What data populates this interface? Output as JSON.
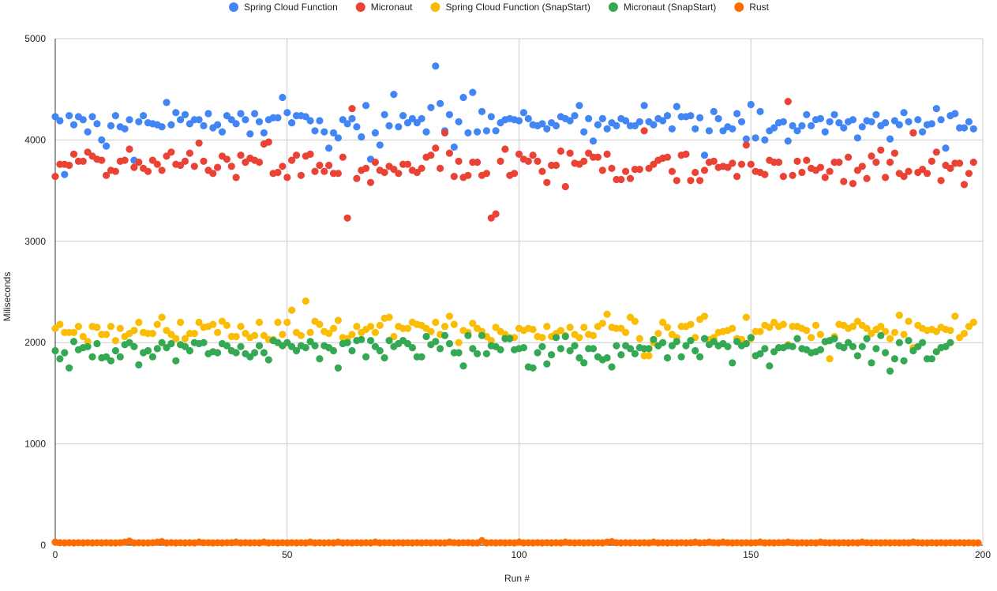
{
  "chart_data": {
    "type": "scatter",
    "title": "",
    "xlabel": "Run #",
    "ylabel": "Miliseconds",
    "xlim": [
      0,
      200
    ],
    "ylim": [
      0,
      5000
    ],
    "x_ticks": [
      "0",
      "50",
      "100",
      "150",
      "200"
    ],
    "y_ticks": [
      "0",
      "1000",
      "2000",
      "3000",
      "4000",
      "5000"
    ],
    "grid": true,
    "legend_position": "top",
    "series": [
      {
        "name": "Spring Cloud Function",
        "color": "#4285f4",
        "values": [
          4230,
          4190,
          3660,
          4240,
          4150,
          4230,
          4200,
          4080,
          4230,
          4160,
          4000,
          3940,
          4140,
          4240,
          4130,
          4110,
          4200,
          3800,
          4180,
          4240,
          4170,
          4160,
          4150,
          4130,
          4370,
          4150,
          4270,
          4200,
          4250,
          4160,
          4200,
          4200,
          4140,
          4260,
          4120,
          4150,
          4080,
          4240,
          4200,
          4160,
          4260,
          4200,
          4060,
          4260,
          4180,
          4070,
          4200,
          4220,
          4220,
          4420,
          4270,
          4170,
          4240,
          4240,
          4230,
          4190,
          4090,
          4190,
          4080,
          3920,
          4070,
          4020,
          4200,
          4160,
          4210,
          4130,
          4030,
          4340,
          3810,
          4070,
          3950,
          4250,
          4140,
          4450,
          4130,
          4240,
          4170,
          4210,
          4170,
          4210,
          4080,
          4320,
          4730,
          4360,
          4090,
          4250,
          3930,
          4180,
          4420,
          4070,
          4470,
          4080,
          4280,
          4090,
          4230,
          4090,
          4170,
          4200,
          4210,
          4200,
          4190,
          4270,
          4210,
          4150,
          4140,
          4160,
          4110,
          4170,
          4140,
          4230,
          4210,
          4190,
          4240,
          4340,
          4080,
          4210,
          3990,
          4150,
          4210,
          4110,
          4170,
          4140,
          4210,
          4190,
          4140,
          4140,
          4180,
          4340,
          4180,
          4150,
          4210,
          4190,
          4240,
          4110,
          4330,
          4230,
          4230,
          4240,
          4110,
          4220,
          3850,
          4090,
          4280,
          4210,
          4090,
          4130,
          4110,
          4260,
          4180,
          4010,
          4350,
          4020,
          4280,
          4000,
          4090,
          4120,
          4170,
          4180,
          3990,
          4140,
          4090,
          4140,
          4250,
          4140,
          4200,
          4210,
          4080,
          4180,
          4250,
          4170,
          4120,
          4180,
          4200,
          4020,
          4130,
          4190,
          4180,
          4250,
          4140,
          4170,
          4010,
          4190,
          4150,
          4270,
          4180,
          4070,
          4200,
          4080,
          4150,
          4160,
          4310,
          4200,
          3920,
          4240,
          4260,
          4120,
          4120,
          4180,
          4110
        ]
      },
      {
        "name": "Micronaut",
        "color": "#ea4335",
        "values": [
          3640,
          3760,
          3760,
          3750,
          3860,
          3790,
          3790,
          3880,
          3840,
          3810,
          3800,
          3650,
          3700,
          3690,
          3790,
          3800,
          3910,
          3730,
          3780,
          3720,
          3690,
          3800,
          3760,
          3700,
          3840,
          3880,
          3760,
          3750,
          3790,
          3870,
          3740,
          3970,
          3790,
          3700,
          3670,
          3730,
          3840,
          3810,
          3740,
          3630,
          3850,
          3780,
          3820,
          3800,
          3780,
          3960,
          3980,
          3670,
          3680,
          3740,
          3630,
          3800,
          3850,
          3650,
          3840,
          3860,
          3690,
          3750,
          3690,
          3750,
          3670,
          3670,
          3830,
          3230,
          4310,
          3620,
          3700,
          3720,
          3580,
          3780,
          3700,
          3680,
          3740,
          3710,
          3670,
          3760,
          3760,
          3700,
          3680,
          3720,
          3830,
          3850,
          3920,
          3720,
          4070,
          3870,
          3640,
          3790,
          3630,
          3650,
          3780,
          3780,
          3650,
          3670,
          3230,
          3270,
          3790,
          3910,
          3650,
          3670,
          3860,
          3810,
          3790,
          3850,
          3790,
          3690,
          3580,
          3750,
          3750,
          3890,
          3540,
          3870,
          3770,
          3760,
          3790,
          3870,
          3830,
          3830,
          3700,
          3860,
          3720,
          3610,
          3610,
          3690,
          3620,
          3710,
          3710,
          4090,
          3720,
          3760,
          3800,
          3820,
          3830,
          3690,
          3600,
          3850,
          3860,
          3600,
          3680,
          3600,
          3700,
          3780,
          3790,
          3730,
          3740,
          3730,
          3770,
          3640,
          3760,
          3950,
          3760,
          3690,
          3680,
          3660,
          3800,
          3780,
          3780,
          3640,
          4380,
          3650,
          3790,
          3680,
          3800,
          3720,
          3700,
          3730,
          3630,
          3690,
          3780,
          3780,
          3590,
          3830,
          3570,
          3700,
          3740,
          3620,
          3840,
          3780,
          3900,
          3630,
          3780,
          3870,
          3670,
          3640,
          3690,
          4070,
          3680,
          3710,
          3670,
          3790,
          3880,
          3600,
          3750,
          3720,
          3770,
          3770,
          3560,
          3670,
          3780
        ]
      },
      {
        "name": "Spring Cloud Function (SnapStart)",
        "color": "#fbbc04",
        "values": [
          2140,
          2180,
          2100,
          2100,
          2100,
          2160,
          2060,
          2010,
          2160,
          2150,
          2080,
          2080,
          2160,
          2020,
          2140,
          2060,
          2090,
          2120,
          2200,
          2100,
          2090,
          2090,
          2180,
          2250,
          2120,
          2080,
          2040,
          2200,
          2040,
          2090,
          2090,
          2200,
          2150,
          2160,
          2180,
          2100,
          2210,
          2170,
          2060,
          2060,
          2160,
          2090,
          2050,
          2070,
          2200,
          2070,
          2030,
          2030,
          2200,
          2080,
          2200,
          2320,
          2100,
          2070,
          2410,
          2100,
          2210,
          2180,
          2110,
          2090,
          2140,
          2220,
          2050,
          2040,
          2080,
          2160,
          2100,
          2130,
          2160,
          2100,
          2170,
          2240,
          2250,
          2060,
          2160,
          2140,
          2140,
          2200,
          2180,
          2170,
          2140,
          2110,
          2200,
          2080,
          2160,
          2260,
          2180,
          2000,
          2120,
          2100,
          2190,
          2140,
          2110,
          2060,
          2020,
          2150,
          2110,
          2080,
          2050,
          2050,
          2140,
          2120,
          2140,
          2130,
          2060,
          2050,
          2160,
          2060,
          2090,
          2120,
          2070,
          2150,
          2080,
          2050,
          2150,
          2080,
          2070,
          2160,
          2190,
          2280,
          2150,
          2140,
          2140,
          2100,
          2250,
          2210,
          2040,
          1870,
          1870,
          2000,
          2090,
          2200,
          2150,
          2080,
          2050,
          2160,
          2160,
          2180,
          2050,
          2230,
          2260,
          2030,
          2050,
          2100,
          2110,
          2120,
          2140,
          2040,
          2030,
          2250,
          2040,
          2110,
          2110,
          2170,
          2150,
          2200,
          2160,
          2180,
          1980,
          2160,
          2160,
          2140,
          2120,
          2050,
          2170,
          2080,
          2010,
          1840,
          2060,
          2180,
          2170,
          2140,
          2160,
          2210,
          2170,
          2140,
          2090,
          2130,
          2160,
          2110,
          2040,
          2100,
          2270,
          2080,
          2210,
          1950,
          2170,
          2140,
          2120,
          2130,
          2110,
          2150,
          2130,
          2120,
          2260,
          2050,
          2090,
          2160,
          2200
        ]
      },
      {
        "name": "Micronaut (SnapStart)",
        "color": "#34a853",
        "values": [
          1920,
          1840,
          1900,
          1750,
          2010,
          1930,
          1950,
          1960,
          1860,
          1990,
          1850,
          1860,
          1820,
          1920,
          1860,
          1980,
          2000,
          1960,
          1780,
          1900,
          1920,
          1860,
          1940,
          2000,
          1950,
          1990,
          1820,
          1980,
          1960,
          1920,
          2000,
          1990,
          2000,
          1890,
          1910,
          1900,
          1990,
          1970,
          1920,
          1900,
          1960,
          1890,
          1860,
          1900,
          1970,
          1900,
          1830,
          2020,
          2000,
          1970,
          2000,
          1960,
          1920,
          1970,
          1950,
          2010,
          1970,
          1840,
          1970,
          1950,
          1920,
          1750,
          1990,
          2000,
          1920,
          2020,
          2030,
          1860,
          2020,
          1960,
          1920,
          1850,
          2020,
          1960,
          1990,
          2020,
          1990,
          1950,
          1860,
          1860,
          2060,
          1980,
          2010,
          1940,
          2070,
          1990,
          1900,
          1900,
          1770,
          2070,
          1940,
          1890,
          2070,
          1890,
          1970,
          1960,
          1930,
          2040,
          2040,
          1930,
          1940,
          1950,
          1760,
          1750,
          1900,
          1960,
          1790,
          1880,
          2050,
          1940,
          2060,
          1920,
          1970,
          1850,
          1800,
          1940,
          1940,
          1860,
          1830,
          1850,
          1760,
          1970,
          1880,
          1970,
          1940,
          1890,
          1950,
          1940,
          1940,
          2030,
          1970,
          2000,
          1850,
          1970,
          2010,
          1860,
          1970,
          2020,
          1920,
          1860,
          2040,
          1980,
          2010,
          1970,
          1990,
          1960,
          1800,
          2010,
          1970,
          1990,
          2050,
          1870,
          1890,
          1940,
          1770,
          1910,
          1950,
          1950,
          1970,
          1960,
          2040,
          1940,
          1930,
          1900,
          1910,
          1930,
          2010,
          2020,
          2040,
          1970,
          1950,
          2000,
          1960,
          1870,
          1960,
          2040,
          1800,
          1940,
          2070,
          1900,
          1720,
          1840,
          2000,
          1820,
          2020,
          1920,
          1960,
          2000,
          1840,
          1840,
          1910,
          1950,
          1960,
          2000
        ]
      },
      {
        "name": "Rust",
        "color": "#ff6d01",
        "values": [
          30,
          25,
          20,
          25,
          20,
          25,
          15,
          25,
          20,
          25,
          20,
          25,
          20,
          20,
          25,
          30,
          40,
          20,
          25,
          20,
          20,
          25,
          30,
          35,
          20,
          25,
          20,
          25,
          20,
          25,
          20,
          30,
          25,
          25,
          20,
          25,
          20,
          25,
          25,
          30,
          20,
          25,
          20,
          25,
          20,
          30,
          20,
          25,
          20,
          25,
          20,
          25,
          20,
          25,
          20,
          30,
          20,
          25,
          20,
          25,
          20,
          30,
          20,
          25,
          20,
          25,
          20,
          25,
          20,
          30,
          20,
          25,
          25,
          20,
          25,
          20,
          25,
          20,
          25,
          20,
          25,
          20,
          25,
          20,
          20,
          30,
          25,
          20,
          25,
          25,
          20,
          20,
          45,
          20,
          25,
          20,
          25,
          20,
          25,
          20,
          30,
          20,
          25,
          20,
          25,
          20,
          25,
          20,
          25,
          20,
          30,
          25,
          20,
          25,
          20,
          25,
          20,
          25,
          20,
          30,
          35,
          25,
          20,
          25,
          20,
          25,
          20,
          25,
          20,
          30,
          20,
          25,
          20,
          25,
          20,
          25,
          20,
          25,
          30,
          20,
          25,
          30,
          25,
          20,
          30,
          25,
          20,
          25,
          20,
          25,
          20,
          25,
          30,
          20,
          25,
          20,
          25,
          25,
          30,
          25,
          20,
          25,
          20,
          25,
          20,
          30,
          25,
          20,
          25,
          20,
          25,
          20,
          25,
          20,
          30,
          25,
          20,
          25,
          20,
          25,
          20,
          25,
          20,
          25,
          20,
          30,
          25,
          20,
          20,
          25,
          20,
          25,
          20,
          25,
          20,
          25,
          20,
          25,
          20,
          15
        ]
      }
    ]
  }
}
